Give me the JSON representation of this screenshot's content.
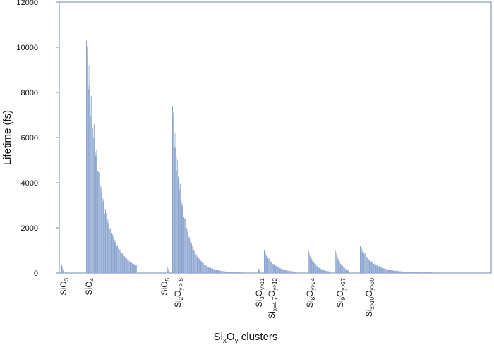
{
  "chart_data": {
    "type": "bar",
    "xlabel": {
      "base1": "Si",
      "sub1": "x",
      "base2": "O",
      "sub2": "y",
      "rest": " clusters"
    },
    "ylabel": "Lifetime (fs)",
    "ylim": [
      0,
      12000
    ],
    "yticks": [
      0,
      2000,
      4000,
      6000,
      8000,
      10000,
      12000
    ],
    "grid": false,
    "legend": "none",
    "colors": {
      "bar": "#9db3d8",
      "bar_edge": "#7e98c6",
      "axis": "#6c8aa8",
      "text": "#111111"
    },
    "categories": [
      {
        "id": "sio3",
        "parts": [
          [
            "Si",
            ""
          ],
          [
            "O",
            ""
          ],
          [
            "3",
            "sub"
          ]
        ]
      },
      {
        "id": "sio4",
        "parts": [
          [
            "Si",
            ""
          ],
          [
            "O",
            ""
          ],
          [
            "4",
            "sub"
          ]
        ]
      },
      {
        "id": "sio5",
        "parts": [
          [
            "Si",
            ""
          ],
          [
            "O",
            ""
          ],
          [
            "5",
            "sub"
          ]
        ]
      },
      {
        "id": "si2",
        "parts": [
          [
            "Si",
            ""
          ],
          [
            "2",
            "sub"
          ],
          [
            "O",
            ""
          ],
          [
            "y > 5",
            "sub"
          ]
        ]
      },
      {
        "id": "si3",
        "parts": [
          [
            "Si",
            ""
          ],
          [
            "3",
            "sub"
          ],
          [
            "O",
            ""
          ],
          [
            "y>11",
            "sub"
          ]
        ]
      },
      {
        "id": "si47",
        "parts": [
          [
            "Si",
            ""
          ],
          [
            "x=4-7",
            "sub"
          ],
          [
            "O",
            ""
          ],
          [
            "y>12",
            "sub"
          ]
        ]
      },
      {
        "id": "si8",
        "parts": [
          [
            "Si",
            ""
          ],
          [
            "8",
            "sub"
          ],
          [
            "O",
            ""
          ],
          [
            "y>24",
            "sub"
          ]
        ]
      },
      {
        "id": "si9",
        "parts": [
          [
            "Si",
            ""
          ],
          [
            "9",
            "sub"
          ],
          [
            "O",
            ""
          ],
          [
            "y>27",
            "sub"
          ]
        ]
      },
      {
        "id": "si10",
        "parts": [
          [
            "Si",
            ""
          ],
          [
            "x>10",
            "sub"
          ],
          [
            "O",
            ""
          ],
          [
            "y>30",
            "sub"
          ]
        ]
      }
    ],
    "series": [
      {
        "category": "sio3",
        "x_start": 3,
        "bar_count": 4,
        "peak": 380,
        "decay": 0.5,
        "floor": 40
      },
      {
        "category": "sio4",
        "x_start": 38,
        "bar_count": 80,
        "peak": 10300,
        "decay": 0.045,
        "floor": 30
      },
      {
        "category": "sio5",
        "x_start": 152,
        "bar_count": 4,
        "peak": 420,
        "decay": 0.5,
        "floor": 40
      },
      {
        "category": "si2",
        "x_start": 160,
        "bar_count": 110,
        "peak": 7400,
        "decay": 0.06,
        "floor": 20
      },
      {
        "category": "si3",
        "x_start": 282,
        "bar_count": 3,
        "peak": 180,
        "decay": 0.5,
        "floor": 40
      },
      {
        "category": "si47",
        "x_start": 290,
        "bar_count": 50,
        "peak": 1000,
        "decay": 0.065,
        "floor": 20
      },
      {
        "category": "si8",
        "x_start": 352,
        "bar_count": 35,
        "peak": 1060,
        "decay": 0.09,
        "floor": 20
      },
      {
        "category": "si9",
        "x_start": 390,
        "bar_count": 22,
        "peak": 1080,
        "decay": 0.11,
        "floor": 20
      },
      {
        "category": "si10",
        "x_start": 426,
        "bar_count": 115,
        "peak": 1200,
        "decay": 0.05,
        "floor": 25
      }
    ],
    "x_range": [
      0,
      612
    ]
  }
}
